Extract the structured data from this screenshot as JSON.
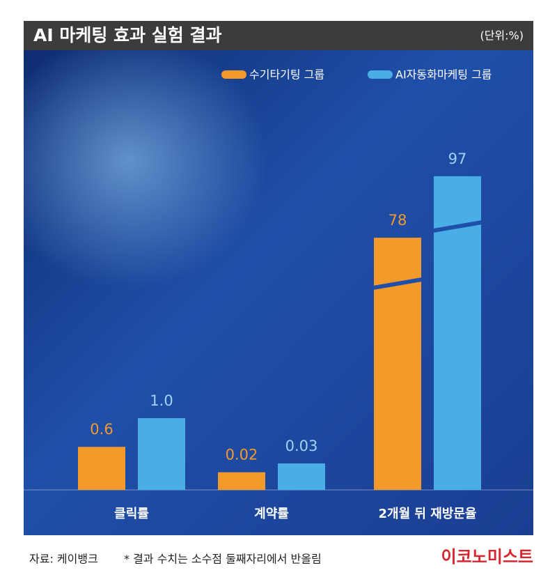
{
  "chart_data": {
    "type": "bar",
    "title": "AI 마케팅 효과 실험 결과",
    "unit": "(단위:%)",
    "categories": [
      "클릭률",
      "계약률",
      "2개월 뒤 재방문율"
    ],
    "series": [
      {
        "name": "수기타기팅 그룹",
        "color": "#f39a2b",
        "values": [
          0.6,
          0.02,
          78
        ]
      },
      {
        "name": "AI자동화마케팅 그룹",
        "color": "#4aaee6",
        "values": [
          1.0,
          0.03,
          97
        ],
        "value_labels": [
          "1.0",
          "0.03",
          "97"
        ]
      }
    ]
  },
  "footer": {
    "source": "자료: 케이뱅크",
    "note": "* 결과 수치는 소수점 둘째자리에서 반올림",
    "logo": "이코노미스트"
  }
}
